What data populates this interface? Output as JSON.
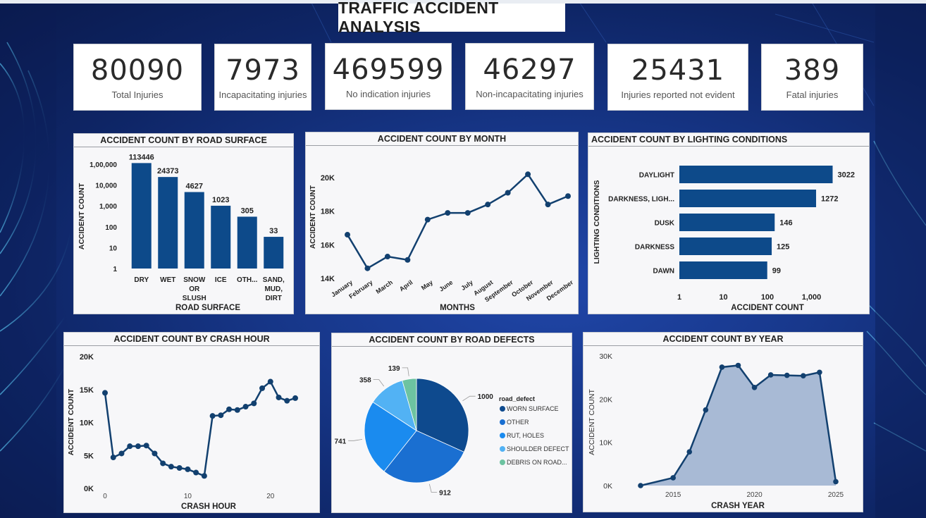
{
  "title": "TRAFFIC ACCIDENT ANALYSIS",
  "kpis": [
    {
      "value": "80090",
      "label": "Total Injuries"
    },
    {
      "value": "7973",
      "label": "Incapacitating injuries"
    },
    {
      "value": "469599",
      "label": "No indication injuries"
    },
    {
      "value": "46297",
      "label": "Non-incapacitating injuries"
    },
    {
      "value": "25431",
      "label": "Injuries reported not evident"
    },
    {
      "value": "389",
      "label": "Fatal injuries"
    }
  ],
  "colors": {
    "bar": "#0d4a8a",
    "line": "#12406f",
    "area": "#9eb3d0",
    "background": "#17378a"
  },
  "chart_data": [
    {
      "id": "road_surface",
      "type": "bar",
      "title": "ACCIDENT COUNT BY ROAD SURFACE",
      "xlabel": "ROAD SURFACE",
      "ylabel": "ACCIDENT COUNT",
      "scale": "log",
      "ylim": [
        1,
        100000
      ],
      "yticks": [
        "1",
        "10",
        "100",
        "1,000",
        "10,000",
        "1,00,000"
      ],
      "categories": [
        [
          "DRY"
        ],
        [
          "WET"
        ],
        [
          "SNOW",
          "OR",
          "SLUSH"
        ],
        [
          "ICE"
        ],
        [
          "OTH..."
        ],
        [
          "SAND,",
          "MUD,",
          "DIRT"
        ]
      ],
      "values": [
        113446,
        24373,
        4627,
        1023,
        305,
        33
      ],
      "labels": [
        "113446",
        "24373",
        "4627",
        "1023",
        "305",
        "33"
      ]
    },
    {
      "id": "by_month",
      "type": "line",
      "title": "ACCIDENT COUNT BY MONTH",
      "xlabel": "MONTHS",
      "ylabel": "ACCIDENT COUNT",
      "ylim": [
        14000,
        20800
      ],
      "yticks": [
        {
          "v": 14000,
          "t": "14K"
        },
        {
          "v": 16000,
          "t": "16K"
        },
        {
          "v": 18000,
          "t": "18K"
        },
        {
          "v": 20000,
          "t": "20K"
        }
      ],
      "categories": [
        "January",
        "February",
        "March",
        "April",
        "May",
        "June",
        "July",
        "August",
        "September",
        "October",
        "November",
        "December"
      ],
      "values": [
        16600,
        14600,
        15300,
        15100,
        17500,
        17900,
        17900,
        18400,
        19100,
        20200,
        18400,
        18900
      ]
    },
    {
      "id": "lighting",
      "type": "bar",
      "orientation": "horizontal",
      "title": "ACCIDENT COUNT BY LIGHTING CONDITIONS",
      "xlabel": "ACCIDENT COUNT",
      "ylabel": "LIGHTING CONDITIONS",
      "scale": "log",
      "xticks": [
        "1",
        "10",
        "100",
        "1,000"
      ],
      "categories": [
        "DAYLIGHT",
        "DARKNESS, LIGH...",
        "DUSK",
        "DARKNESS",
        "DAWN"
      ],
      "values": [
        3022,
        1272,
        146,
        125,
        99
      ],
      "labels": [
        "3022",
        "1272",
        "146",
        "125",
        "99"
      ]
    },
    {
      "id": "crash_hour",
      "type": "line",
      "title": "ACCIDENT COUNT BY CRASH HOUR",
      "xlabel": "CRASH HOUR",
      "ylabel": "ACCIDENT COUNT",
      "ylim": [
        0,
        20000
      ],
      "xlim": [
        0,
        23
      ],
      "yticks": [
        {
          "v": 0,
          "t": "0K"
        },
        {
          "v": 5000,
          "t": "5K"
        },
        {
          "v": 10000,
          "t": "10K"
        },
        {
          "v": 15000,
          "t": "15K"
        },
        {
          "v": 20000,
          "t": "20K"
        }
      ],
      "xticks": [
        {
          "v": 0,
          "t": "0"
        },
        {
          "v": 10,
          "t": "10"
        },
        {
          "v": 20,
          "t": "20"
        }
      ],
      "x": [
        0,
        1,
        2,
        3,
        4,
        5,
        6,
        7,
        8,
        9,
        10,
        11,
        12,
        13,
        14,
        15,
        16,
        17,
        18,
        19,
        20,
        21,
        22,
        23
      ],
      "values": [
        14500,
        4700,
        5300,
        6400,
        6400,
        6500,
        5300,
        3800,
        3300,
        3100,
        2900,
        2400,
        1900,
        11000,
        11100,
        12000,
        11900,
        12400,
        12900,
        15200,
        16200,
        13800,
        13300,
        13700
      ]
    },
    {
      "id": "road_defects",
      "type": "pie",
      "title": "ACCIDENT COUNT BY ROAD DEFECTS",
      "legend_title": "road_defect",
      "categories": [
        "WORN SURFACE",
        "OTHER",
        "RUT, HOLES",
        "SHOULDER DEFECT",
        "DEBRIS ON ROAD..."
      ],
      "values": [
        1000,
        912,
        741,
        358,
        139
      ],
      "labels": [
        "1000",
        "912",
        "741",
        "358",
        "139"
      ],
      "colors": [
        "#0e4a8e",
        "#1a6fd1",
        "#1a8bef",
        "#52b2f4",
        "#6dc3a1"
      ]
    },
    {
      "id": "by_year",
      "type": "area",
      "title": "ACCIDENT COUNT BY YEAR",
      "xlabel": "CRASH YEAR",
      "ylabel": "ACCIDENT COUNT",
      "ylim": [
        0,
        30000
      ],
      "xlim": [
        2013,
        2025
      ],
      "yticks": [
        {
          "v": 0,
          "t": "0K"
        },
        {
          "v": 10000,
          "t": "10K"
        },
        {
          "v": 20000,
          "t": "20K"
        },
        {
          "v": 30000,
          "t": "30K"
        }
      ],
      "xticks": [
        {
          "v": 2015,
          "t": "2015"
        },
        {
          "v": 2020,
          "t": "2020"
        },
        {
          "v": 2025,
          "t": "2025"
        }
      ],
      "x": [
        2013,
        2015,
        2016,
        2017,
        2018,
        2019,
        2020,
        2021,
        2022,
        2023,
        2024,
        2025
      ],
      "values": [
        0,
        1800,
        7800,
        17500,
        27400,
        27800,
        22700,
        25600,
        25500,
        25400,
        26200,
        900
      ]
    }
  ]
}
